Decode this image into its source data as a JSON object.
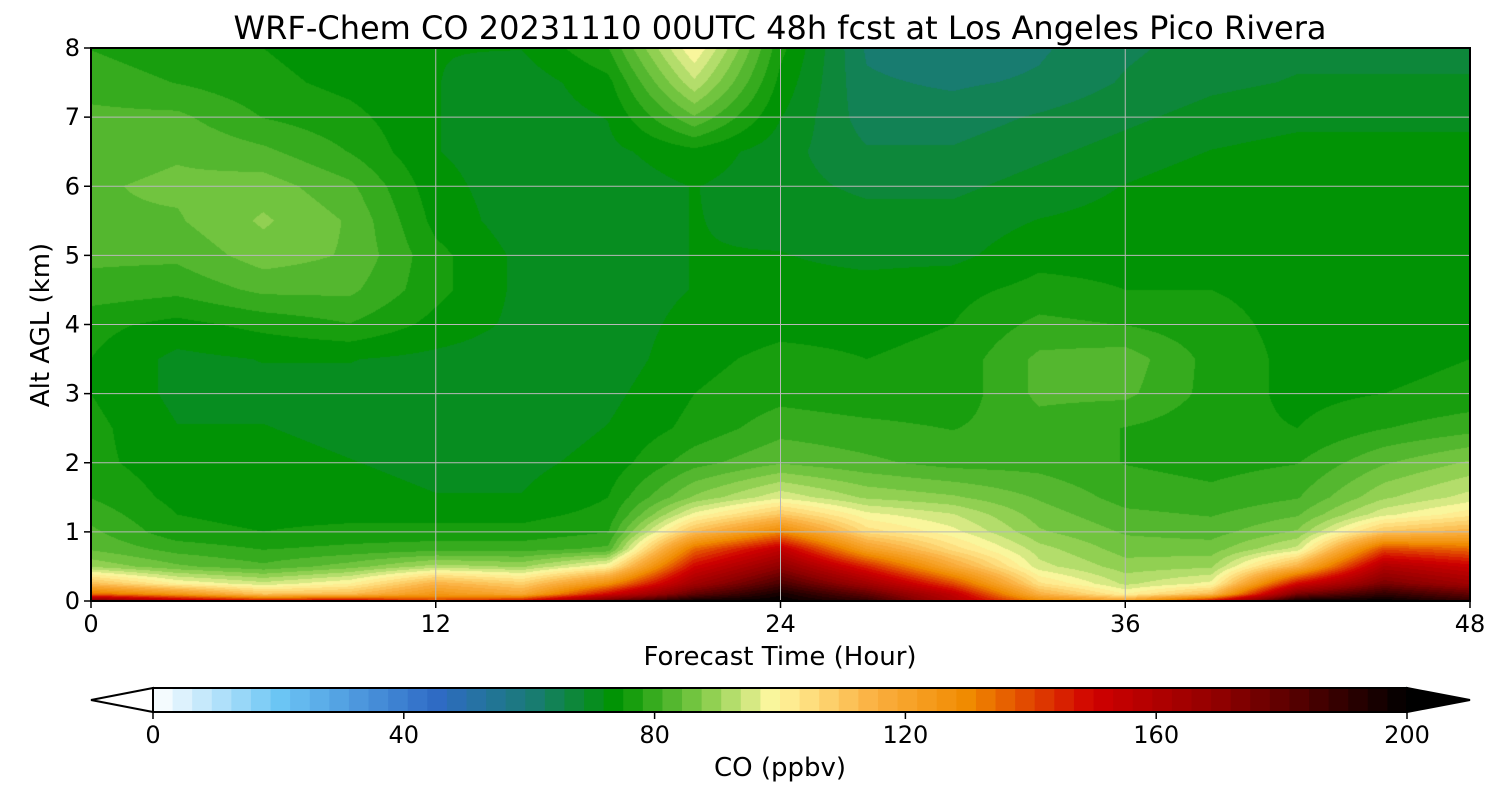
{
  "chart_data": {
    "type": "heatmap",
    "title": "WRF-Chem CO  20231110 00UTC 48h fcst at Los Angeles Pico Rivera",
    "xlabel": "Forecast Time (Hour)",
    "ylabel": "Alt AGL (km)",
    "xlim": [
      0,
      48
    ],
    "ylim": [
      0,
      8
    ],
    "xticks": [
      0,
      12,
      24,
      36,
      48
    ],
    "yticks": [
      0,
      1,
      2,
      3,
      4,
      5,
      6,
      7,
      8
    ],
    "grid": true,
    "colorbar": {
      "label": "CO  (ppbv)",
      "min": 0,
      "max": 200,
      "ticks": [
        0,
        40,
        80,
        120,
        160,
        200
      ],
      "extend": "both",
      "orientation": "horizontal",
      "stops": [
        {
          "v": 0,
          "c": "#ffffff"
        },
        {
          "v": 20,
          "c": "#6cc6f5"
        },
        {
          "v": 45,
          "c": "#2f6bc6"
        },
        {
          "v": 60,
          "c": "#1a7a78"
        },
        {
          "v": 74,
          "c": "#009400"
        },
        {
          "v": 88,
          "c": "#85cc4a"
        },
        {
          "v": 99,
          "c": "#fff8a0"
        },
        {
          "v": 115,
          "c": "#fbb040"
        },
        {
          "v": 130,
          "c": "#f08a00"
        },
        {
          "v": 150,
          "c": "#d00000"
        },
        {
          "v": 170,
          "c": "#900000"
        },
        {
          "v": 200,
          "c": "#000000"
        }
      ]
    },
    "hours": [
      0,
      3,
      6,
      9,
      12,
      15,
      18,
      21,
      24,
      27,
      30,
      33,
      36,
      39,
      42,
      45,
      48
    ],
    "altitudes_km": [
      0,
      0.1,
      0.25,
      0.5,
      0.75,
      1,
      1.25,
      1.5,
      2,
      2.5,
      3,
      3.5,
      4,
      4.5,
      5,
      5.5,
      6,
      6.5,
      7,
      7.5,
      8
    ],
    "values_ppbv": [
      [
        178,
        160,
        150,
        155,
        140,
        150,
        180,
        198,
        200,
        190,
        160,
        130,
        120,
        150,
        198,
        200,
        190
      ],
      [
        135,
        125,
        110,
        112,
        125,
        118,
        150,
        180,
        196,
        180,
        155,
        115,
        100,
        112,
        175,
        190,
        180
      ],
      [
        112,
        100,
        95,
        100,
        115,
        108,
        128,
        165,
        185,
        165,
        140,
        104,
        93,
        98,
        150,
        175,
        165
      ],
      [
        90,
        85,
        82,
        86,
        92,
        90,
        100,
        150,
        170,
        145,
        118,
        95,
        89,
        90,
        115,
        160,
        152
      ],
      [
        84,
        80,
        78,
        79,
        80,
        80,
        82,
        135,
        155,
        122,
        105,
        92,
        86,
        86,
        95,
        140,
        135
      ],
      [
        82,
        76,
        75,
        76,
        76,
        76,
        78,
        112,
        130,
        105,
        98,
        88,
        84,
        83,
        88,
        110,
        115
      ],
      [
        80,
        75,
        74,
        74,
        74,
        74,
        76,
        98,
        110,
        98,
        94,
        86,
        82,
        81,
        84,
        96,
        102
      ],
      [
        78,
        74,
        74,
        73,
        72,
        72,
        75,
        88,
        96,
        90,
        88,
        84,
        80,
        79,
        81,
        90,
        95
      ],
      [
        76,
        73,
        73,
        72,
        71,
        71,
        73,
        80,
        84,
        82,
        80,
        80,
        78,
        77,
        78,
        84,
        88
      ],
      [
        76,
        72,
        72,
        71,
        70,
        70,
        72,
        76,
        80,
        79,
        78,
        80,
        78,
        76,
        75,
        78,
        80
      ],
      [
        75,
        71,
        71,
        71,
        70,
        70,
        71,
        75,
        77,
        76,
        76,
        82,
        82,
        77,
        74,
        75,
        76
      ],
      [
        75,
        71,
        72,
        72,
        71,
        70,
        70,
        74,
        76,
        75,
        76,
        82,
        83,
        77,
        74,
        74,
        75
      ],
      [
        76,
        74,
        76,
        78,
        74,
        71,
        70,
        73,
        74,
        74,
        75,
        79,
        78,
        76,
        74,
        74,
        74
      ],
      [
        80,
        79,
        82,
        82,
        76,
        71,
        70,
        72,
        73,
        73,
        74,
        76,
        75,
        75,
        74,
        74,
        74
      ],
      [
        82,
        82,
        86,
        84,
        76,
        71,
        70,
        72,
        72,
        71,
        71,
        74,
        74,
        74,
        74,
        74,
        75
      ],
      [
        84,
        84,
        88,
        84,
        74,
        70,
        70,
        72,
        71,
        70,
        70,
        72,
        73,
        74,
        74,
        74,
        75
      ],
      [
        84,
        85,
        86,
        82,
        73,
        70,
        70,
        72,
        70,
        68,
        68,
        70,
        72,
        74,
        74,
        74,
        75
      ],
      [
        83,
        84,
        82,
        78,
        72,
        70,
        71,
        74,
        70,
        66,
        66,
        68,
        70,
        72,
        73,
        73,
        73
      ],
      [
        82,
        82,
        78,
        76,
        72,
        70,
        72,
        84,
        72,
        64,
        64,
        66,
        68,
        70,
        71,
        71,
        71
      ],
      [
        80,
        78,
        76,
        74,
        72,
        70,
        74,
        93,
        74,
        63,
        62,
        63,
        66,
        68,
        69,
        69,
        69
      ],
      [
        78,
        76,
        75,
        73,
        72,
        72,
        78,
        100,
        76,
        62,
        60,
        62,
        65,
        67,
        68,
        68,
        68
      ]
    ]
  }
}
